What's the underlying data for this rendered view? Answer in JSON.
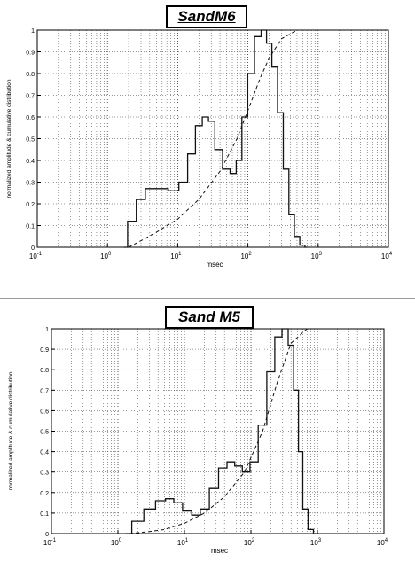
{
  "chart_data": [
    {
      "type": "line",
      "title": "SandM6",
      "xlabel": "msec",
      "ylabel": "normalized amplitude & cumulative distribution",
      "xscale": "log",
      "xlim": [
        0.1,
        10000
      ],
      "ylim": [
        0,
        1
      ],
      "grid": true,
      "x_ticks": [
        {
          "base": "10",
          "exp": "-1"
        },
        {
          "base": "10",
          "exp": "0"
        },
        {
          "base": "10",
          "exp": "1"
        },
        {
          "base": "10",
          "exp": "2"
        },
        {
          "base": "10",
          "exp": "3"
        },
        {
          "base": "10",
          "exp": "4"
        }
      ],
      "y_ticks": [
        "0",
        "0.1",
        "0.2",
        "0.3",
        "0.4",
        "0.5",
        "0.6",
        "0.7",
        "0.8",
        "0.9",
        "1"
      ],
      "series": [
        {
          "style": "solid",
          "x": [
            1.7,
            2.2,
            3,
            4,
            6,
            9,
            12,
            16,
            20,
            25,
            30,
            38,
            50,
            62,
            75,
            90,
            110,
            140,
            170,
            200,
            240,
            290,
            350,
            420,
            500,
            600,
            700
          ],
          "y": [
            0.0,
            0.12,
            0.22,
            0.27,
            0.27,
            0.26,
            0.3,
            0.43,
            0.56,
            0.6,
            0.58,
            0.45,
            0.36,
            0.34,
            0.4,
            0.6,
            0.8,
            0.97,
            1.0,
            0.94,
            0.83,
            0.62,
            0.36,
            0.15,
            0.05,
            0.01,
            0.0
          ]
        },
        {
          "style": "dashed",
          "x": [
            2,
            3,
            5,
            10,
            20,
            40,
            70,
            100,
            150,
            200,
            300,
            500
          ],
          "y": [
            0.0,
            0.03,
            0.07,
            0.13,
            0.22,
            0.35,
            0.5,
            0.63,
            0.78,
            0.87,
            0.96,
            1.0
          ]
        }
      ]
    },
    {
      "type": "line",
      "title": "Sand M5",
      "xlabel": "msec",
      "ylabel": "normalized amplitude & cumulative distribution",
      "xscale": "log",
      "xlim": [
        0.1,
        10000
      ],
      "ylim": [
        0,
        1
      ],
      "grid": true,
      "x_ticks": [
        {
          "base": "10",
          "exp": "-1"
        },
        {
          "base": "10",
          "exp": "0"
        },
        {
          "base": "10",
          "exp": "1"
        },
        {
          "base": "10",
          "exp": "2"
        },
        {
          "base": "10",
          "exp": "3"
        },
        {
          "base": "10",
          "exp": "4"
        }
      ],
      "y_ticks": [
        "0",
        "0.1",
        "0.2",
        "0.3",
        "0.4",
        "0.5",
        "0.6",
        "0.7",
        "0.8",
        "0.9",
        "1"
      ],
      "series": [
        {
          "style": "solid",
          "x": [
            1.3,
            2,
            3,
            4.5,
            6,
            8,
            11,
            15,
            20,
            28,
            38,
            50,
            65,
            85,
            110,
            150,
            200,
            260,
            330,
            400,
            480,
            560,
            650,
            800,
            950
          ],
          "y": [
            0.0,
            0.06,
            0.12,
            0.16,
            0.17,
            0.15,
            0.11,
            0.09,
            0.12,
            0.22,
            0.32,
            0.35,
            0.33,
            0.3,
            0.35,
            0.53,
            0.79,
            0.96,
            1.0,
            0.92,
            0.7,
            0.4,
            0.12,
            0.02,
            0.0
          ]
        },
        {
          "style": "dashed",
          "x": [
            1.5,
            3,
            5,
            10,
            20,
            40,
            80,
            150,
            250,
            400,
            700
          ],
          "y": [
            0.0,
            0.01,
            0.02,
            0.05,
            0.1,
            0.18,
            0.3,
            0.5,
            0.74,
            0.93,
            1.0
          ]
        }
      ]
    }
  ]
}
